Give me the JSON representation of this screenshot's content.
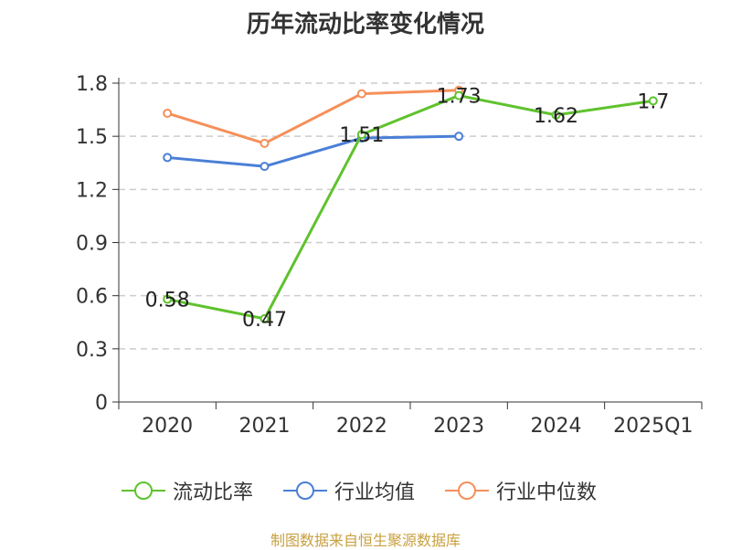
{
  "chart_data": {
    "type": "line",
    "title": "历年流动比率变化情况",
    "categories": [
      "2020",
      "2021",
      "2022",
      "2023",
      "2024",
      "2025Q1"
    ],
    "yticks": [
      "0",
      "0.3",
      "0.6",
      "0.9",
      "1.2",
      "1.5",
      "1.8"
    ],
    "ylim": [
      0,
      1.8
    ],
    "grid": true,
    "legend_position": "bottom",
    "series": [
      {
        "name": "流动比率",
        "color": "#5fc22d",
        "values": [
          0.58,
          0.47,
          1.51,
          1.73,
          1.62,
          1.7
        ],
        "labels": [
          "0.58",
          "0.47",
          "1.51",
          "1.73",
          "1.62",
          "1.7"
        ]
      },
      {
        "name": "行业均值",
        "color": "#4a7fd6",
        "values": [
          1.38,
          1.33,
          1.49,
          1.5,
          null,
          null
        ]
      },
      {
        "name": "行业中位数",
        "color": "#f5905a",
        "values": [
          1.63,
          1.46,
          1.74,
          1.76,
          null,
          null
        ]
      }
    ],
    "source": "制图数据来自恒生聚源数据库"
  }
}
